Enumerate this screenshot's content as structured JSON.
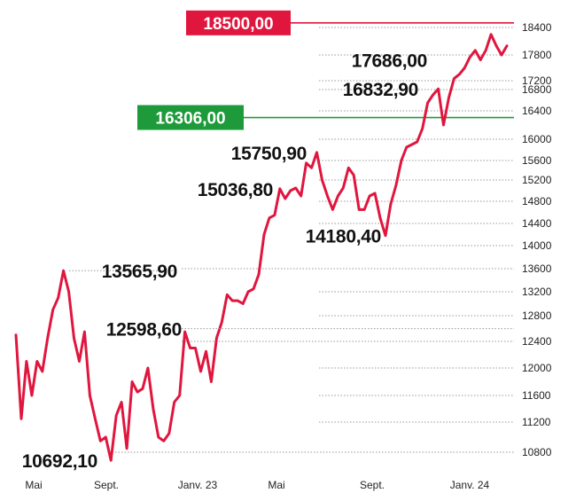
{
  "chart_data": {
    "type": "line",
    "title": "",
    "xlabel": "",
    "ylabel": "",
    "ylim": [
      10600,
      18600
    ],
    "y_ticks": [
      10800,
      11200,
      11600,
      12000,
      12400,
      12800,
      13200,
      13600,
      14000,
      14400,
      14800,
      15200,
      15600,
      16000,
      16400,
      16800,
      17200,
      17800,
      18400
    ],
    "x_ticks": [
      "Mai",
      "Sept.",
      "Janv. 23",
      "Mai",
      "Sept.",
      "Janv. 24"
    ],
    "grid": "dotted horizontal lines at tick values",
    "colors": {
      "line": "#e0163e",
      "resistance": "#e0163e",
      "support": "#1e9a3a",
      "grid": "#999999"
    },
    "series": [
      {
        "values": [
          12500,
          11250,
          12100,
          11600,
          12100,
          11950,
          12450,
          12900,
          13100,
          13565.9,
          13200,
          12450,
          12100,
          12550,
          11600,
          11250,
          10950,
          11000,
          10692.1,
          11300,
          11500,
          10850,
          11800,
          11650,
          11700,
          12000,
          11400,
          11000,
          10950,
          11050,
          11500,
          11600,
          12550,
          12300,
          12300,
          11950,
          12250,
          11800,
          12450,
          12700,
          13150,
          13050,
          13050,
          13000,
          13200,
          13250,
          13500,
          14200,
          14500,
          14550,
          15036.8,
          14850,
          15000,
          15050,
          14900,
          15550,
          15450,
          15750.9,
          15200,
          14900,
          14650,
          14900,
          15050,
          15450,
          15300,
          14650,
          14650,
          14900,
          14950,
          14500,
          14180.4,
          14750,
          15100,
          15600,
          15850,
          15900,
          15950,
          16150,
          16550,
          16700,
          16832.9,
          16200,
          16650,
          17250,
          17350,
          17500,
          17750,
          17900,
          17686,
          17900,
          18250,
          18000,
          17800,
          18000
        ]
      }
    ],
    "annotations": [
      {
        "label": "17686,00",
        "value": 17686
      },
      {
        "label": "16832,90",
        "value": 16832.9
      },
      {
        "label": "15750,90",
        "value": 15750.9
      },
      {
        "label": "15036,80",
        "value": 15036.8
      },
      {
        "label": "14180,40",
        "value": 14180.4
      },
      {
        "label": "13565,90",
        "value": 13565.9
      },
      {
        "label": "12598,60",
        "value": 12598.6
      },
      {
        "label": "10692,10",
        "value": 10692.1
      }
    ],
    "levels": [
      {
        "label": "18500,00",
        "value": 18500,
        "kind": "resistance"
      },
      {
        "label": "16306,00",
        "value": 16306,
        "kind": "support"
      }
    ]
  }
}
